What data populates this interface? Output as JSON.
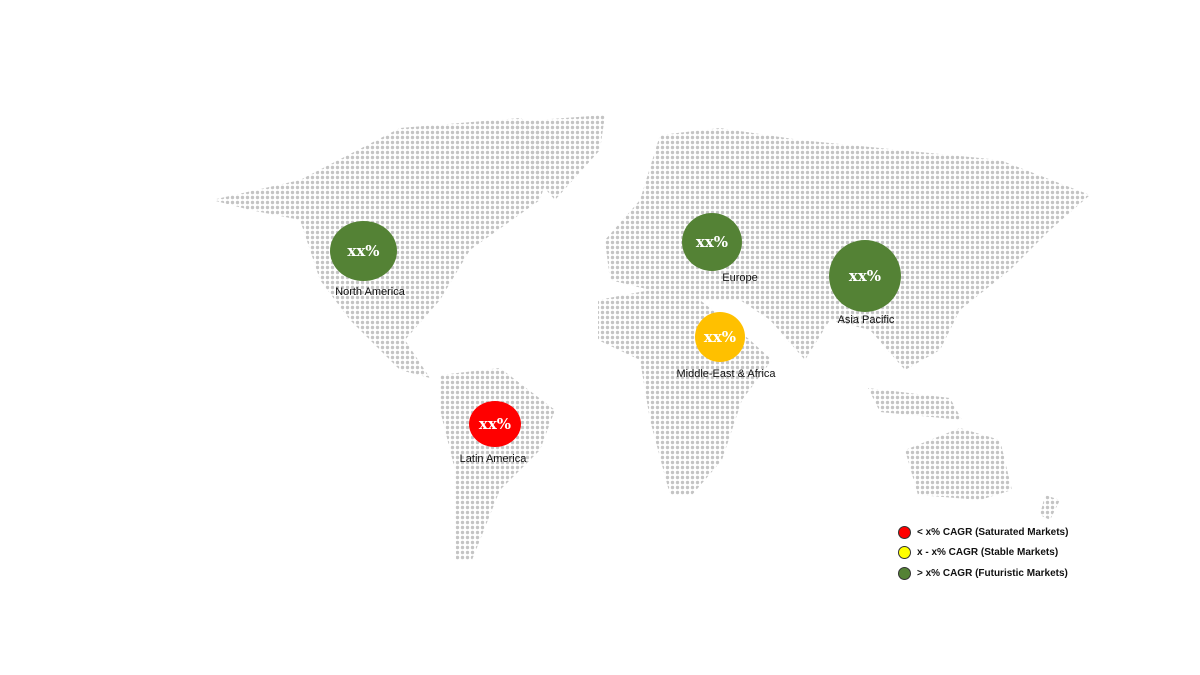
{
  "map": {
    "regions": [
      {
        "name": "North America",
        "value_label": "xx%",
        "color": "#548235"
      },
      {
        "name": "Europe",
        "value_label": "xx%",
        "color": "#548235"
      },
      {
        "name": "Asia Pacific",
        "value_label": "xx%",
        "color": "#548235"
      },
      {
        "name": "Middle-East & Africa",
        "value_label": "xx%",
        "color": "#FFC000"
      },
      {
        "name": "Latin America",
        "value_label": "xx%",
        "color": "#FF0000"
      }
    ],
    "land_color": "#c4c4c4"
  },
  "legend": [
    {
      "label": "< x% CAGR (Saturated Markets)",
      "color": "#FF0000"
    },
    {
      "label": "x - x% CAGR (Stable Markets)",
      "color": "#FFFF00"
    },
    {
      "label": "> x% CAGR (Futuristic Markets)",
      "color": "#548235"
    }
  ]
}
